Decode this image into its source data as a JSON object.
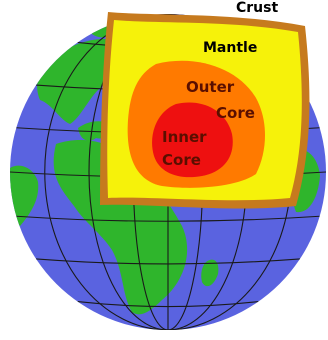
{
  "labels": {
    "crust": "Crust",
    "mantle": "Mantle",
    "outer_core_line1": "Outer",
    "outer_core_line2": "Core",
    "inner_core_line1": "Inner",
    "inner_core_line2": "Core"
  },
  "colors": {
    "ocean": "#5a63e0",
    "land": "#2fb52c",
    "crust": "#c67a1e",
    "mantle": "#f6f20a",
    "outer_core": "#ff7a00",
    "inner_core": "#ee1010",
    "grid": "#1a1a1a",
    "label_dark": "#000000",
    "label_core": "#5a0f00"
  }
}
